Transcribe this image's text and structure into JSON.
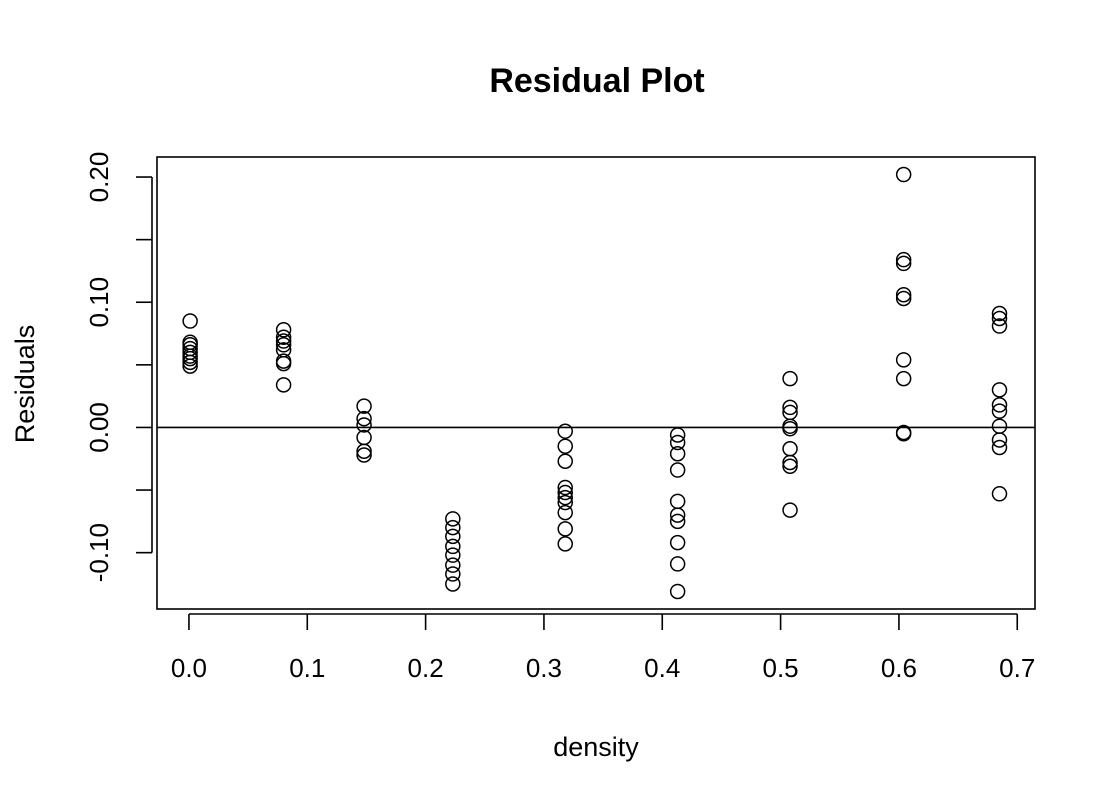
{
  "chart_data": {
    "type": "scatter",
    "title": "Residual Plot",
    "xlabel": "density",
    "ylabel": "Residuals",
    "xlim": [
      -0.027,
      0.715
    ],
    "ylim": [
      -0.145,
      0.216
    ],
    "x_ticks": [
      0.0,
      0.1,
      0.2,
      0.3,
      0.4,
      0.5,
      0.6,
      0.7
    ],
    "x_tick_labels": [
      "0.0",
      "0.1",
      "0.2",
      "0.3",
      "0.4",
      "0.5",
      "0.6",
      "0.7"
    ],
    "y_ticks": [
      -0.1,
      -0.05,
      0.0,
      0.05,
      0.1,
      0.15,
      0.2
    ],
    "y_tick_labels": [
      "-0.10",
      "",
      "0.00",
      "",
      "0.10",
      "",
      "0.20"
    ],
    "reference_line_y": 0.0,
    "grid": false,
    "legend": "none",
    "series": [
      {
        "points": [
          [
            0.001,
            0.085
          ],
          [
            0.001,
            0.068
          ],
          [
            0.001,
            0.066
          ],
          [
            0.001,
            0.063
          ],
          [
            0.001,
            0.06
          ],
          [
            0.001,
            0.057
          ],
          [
            0.001,
            0.055
          ],
          [
            0.001,
            0.052
          ],
          [
            0.001,
            0.049
          ],
          [
            0.08,
            0.078
          ],
          [
            0.08,
            0.072
          ],
          [
            0.08,
            0.069
          ],
          [
            0.08,
            0.066
          ],
          [
            0.08,
            0.062
          ],
          [
            0.08,
            0.053
          ],
          [
            0.08,
            0.051
          ],
          [
            0.08,
            0.034
          ],
          [
            0.148,
            0.017
          ],
          [
            0.148,
            0.007
          ],
          [
            0.148,
            0.002
          ],
          [
            0.148,
            -0.008
          ],
          [
            0.148,
            -0.019
          ],
          [
            0.148,
            -0.022
          ],
          [
            0.223,
            -0.073
          ],
          [
            0.223,
            -0.08
          ],
          [
            0.223,
            -0.087
          ],
          [
            0.223,
            -0.095
          ],
          [
            0.223,
            -0.102
          ],
          [
            0.223,
            -0.11
          ],
          [
            0.223,
            -0.117
          ],
          [
            0.223,
            -0.125
          ],
          [
            0.318,
            -0.003
          ],
          [
            0.318,
            -0.015
          ],
          [
            0.318,
            -0.027
          ],
          [
            0.318,
            -0.048
          ],
          [
            0.318,
            -0.052
          ],
          [
            0.318,
            -0.056
          ],
          [
            0.318,
            -0.06
          ],
          [
            0.318,
            -0.068
          ],
          [
            0.318,
            -0.081
          ],
          [
            0.318,
            -0.093
          ],
          [
            0.413,
            -0.006
          ],
          [
            0.413,
            -0.012
          ],
          [
            0.413,
            -0.021
          ],
          [
            0.413,
            -0.034
          ],
          [
            0.413,
            -0.059
          ],
          [
            0.413,
            -0.07
          ],
          [
            0.413,
            -0.075
          ],
          [
            0.413,
            -0.092
          ],
          [
            0.413,
            -0.109
          ],
          [
            0.413,
            -0.131
          ],
          [
            0.508,
            0.039
          ],
          [
            0.508,
            0.016
          ],
          [
            0.508,
            0.012
          ],
          [
            0.508,
            0.001
          ],
          [
            0.508,
            -0.001
          ],
          [
            0.508,
            -0.017
          ],
          [
            0.508,
            -0.028
          ],
          [
            0.508,
            -0.031
          ],
          [
            0.508,
            -0.066
          ],
          [
            0.604,
            0.202
          ],
          [
            0.604,
            0.134
          ],
          [
            0.604,
            0.131
          ],
          [
            0.604,
            0.106
          ],
          [
            0.604,
            0.103
          ],
          [
            0.604,
            0.054
          ],
          [
            0.604,
            0.039
          ],
          [
            0.604,
            -0.004
          ],
          [
            0.604,
            -0.005
          ],
          [
            0.685,
            0.091
          ],
          [
            0.685,
            0.087
          ],
          [
            0.685,
            0.081
          ],
          [
            0.685,
            0.03
          ],
          [
            0.685,
            0.018
          ],
          [
            0.685,
            0.013
          ],
          [
            0.685,
            0.001
          ],
          [
            0.685,
            -0.01
          ],
          [
            0.685,
            -0.016
          ],
          [
            0.685,
            -0.053
          ]
        ]
      }
    ]
  }
}
